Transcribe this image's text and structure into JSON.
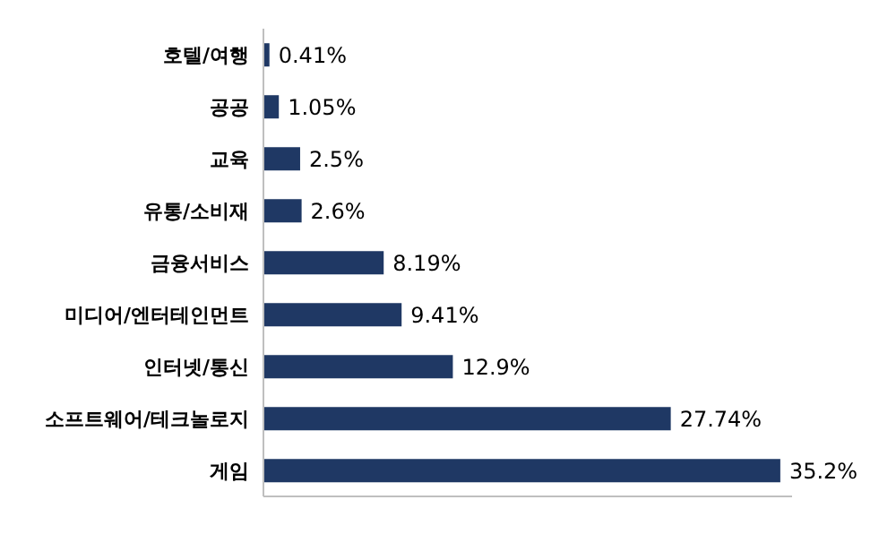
{
  "chart_data": {
    "type": "bar",
    "orientation": "horizontal",
    "categories": [
      "호텔/여행",
      "공공",
      "교육",
      "유통/소비재",
      "금융서비스",
      "미디어/엔터테인먼트",
      "인터넷/통신",
      "소프트웨어/테크놀로지",
      "게임"
    ],
    "values": [
      0.41,
      1.05,
      2.5,
      2.6,
      8.19,
      9.41,
      12.9,
      27.74,
      35.2
    ],
    "value_labels": [
      "0.41%",
      "1.05%",
      "2.5%",
      "2.6%",
      "8.19%",
      "9.41%",
      "12.9%",
      "27.74%",
      "35.2%"
    ],
    "color": "#1f3864"
  }
}
